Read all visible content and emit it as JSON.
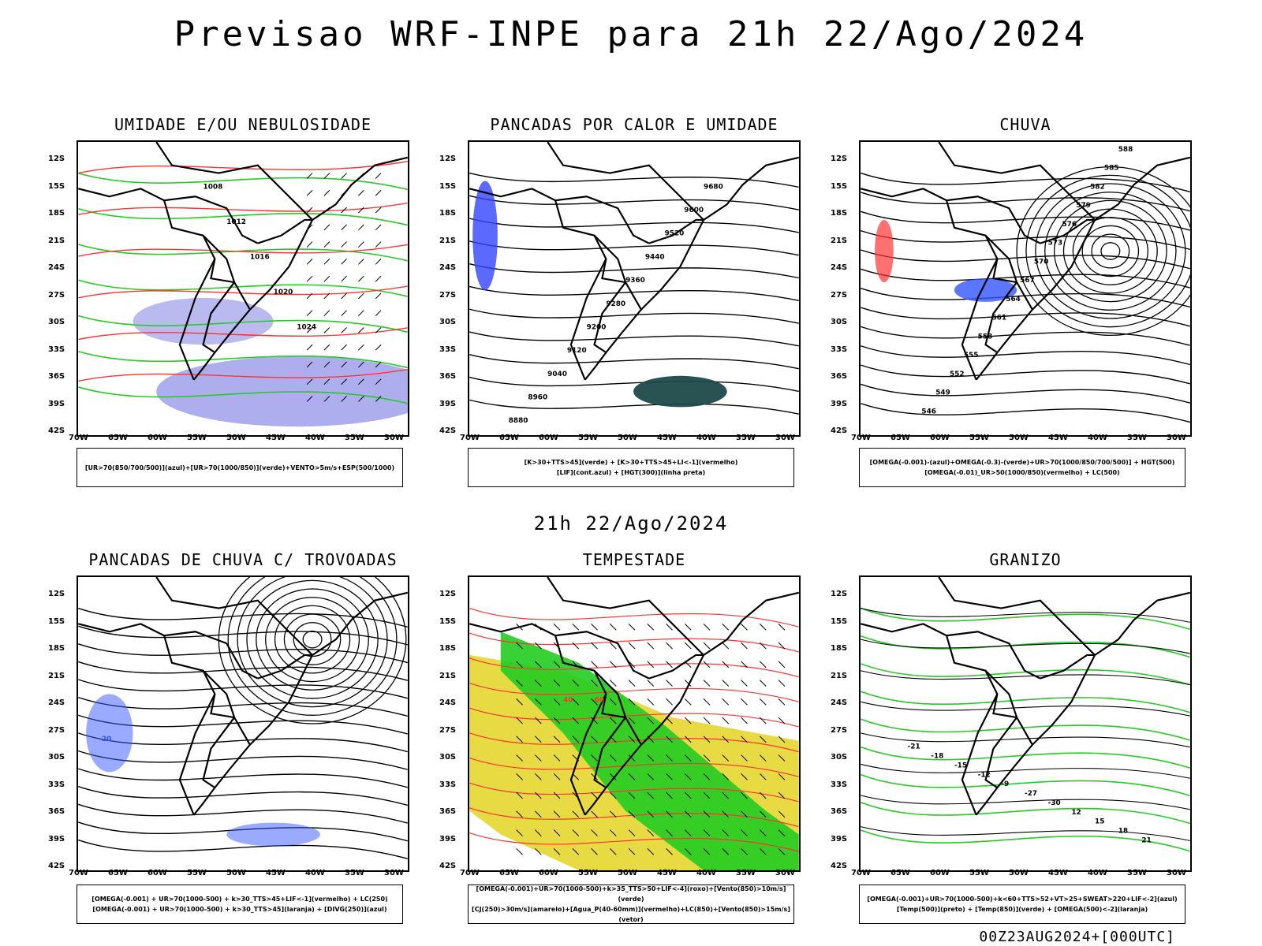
{
  "title": "Previsao WRF-INPE  para 21h 22/Ago/2024",
  "mid_title": "21h 22/Ago/2024",
  "footer": "00Z23AUG2024+[000UTC]",
  "lat_labels": [
    "12S",
    "15S",
    "18S",
    "21S",
    "24S",
    "27S",
    "30S",
    "33S",
    "36S",
    "39S",
    "42S"
  ],
  "lon_labels": [
    "70W",
    "65W",
    "60W",
    "55W",
    "50W",
    "45W",
    "40W",
    "35W",
    "30W"
  ],
  "panels": [
    {
      "title": "UMIDADE E/OU NEBULOSIDADE",
      "legend": [
        "[UR>70(850/700/500)](azul)+[UR>70(1000/850)](verde)+VENTO>5m/s+ESP(500/1000)"
      ],
      "contour_labels": [
        "1008",
        "1012",
        "1016",
        "1020",
        "1024"
      ],
      "colors": {
        "humid_high": "#8c8ce8",
        "humid_low": "#22cc22",
        "thickness": "#ff3333"
      }
    },
    {
      "title": "PANCADAS POR CALOR E UMIDADE",
      "legend": [
        "[K>30+TTS>45](verde) + [K>30+TTS>45+LI<-1](vermelho)",
        "[LIF](cont.azul) + [HGT(300)](linha preta)"
      ],
      "contour_labels": [
        "9680",
        "9600",
        "9520",
        "9440",
        "9360",
        "9280",
        "9200",
        "9120",
        "9040",
        "8960",
        "8880"
      ],
      "colors": {
        "convective": "#1e4a4a",
        "lif": "#3344ff"
      }
    },
    {
      "title": "CHUVA",
      "legend": [
        "[OMEGA(-0.001)-(azul)+OMEGA(-0.3)-(verde)+UR>70(1000/850/700/500)] + HGT(500)",
        "[OMEGA(-0.01)_UR>50(1000/850)(vermelho) + LC(500)"
      ],
      "contour_labels": [
        "588",
        "585",
        "582",
        "579",
        "576",
        "573",
        "570",
        "567",
        "564",
        "561",
        "558",
        "555",
        "552",
        "549",
        "546"
      ],
      "colors": {
        "omega": "#3355ff",
        "omega_ur": "#ff3333"
      }
    },
    {
      "title": "PANCADAS DE CHUVA C/ TROVOADAS",
      "legend": [
        "[OMEGA(-0.001) + UR>70(1000-500) + k>30_TTS>45+LIF<-1](vermelho) + LC(250)",
        "[OMEGA(-0.001) + UR>70(1000-500) + k>30_TTS>45](laranja) + [DIVG(250)](azul)"
      ],
      "contour_labels": [
        "20"
      ],
      "colors": {
        "divg": "#3355ff"
      }
    },
    {
      "title": "TEMPESTADE",
      "legend": [
        "[OMEGA(-0.001)+UR>70(1000-500)+k>35_TTS>50+LIF<-4](roxo)+[Vento(850)>10m/s](verde)",
        "[CJ(250)>30m/s](amarelo)+[Agua_P(40-60mm)](vermelho)+LC(850)+[Vento(850)>15m/s](vetor)"
      ],
      "contour_labels": [
        "40",
        "60"
      ],
      "colors": {
        "jet": "#e6d62e",
        "wind": "#22cc22",
        "water": "#ff3333"
      }
    },
    {
      "title": "GRANIZO",
      "legend": [
        "[OMEGA(-0.001)+UR>70(1000-500)+k<60+TTS>52+VT>25+SWEAT>220+LIF<-2](azul)",
        "[Temp(500)](preto) + [Temp(850)](verde) + [OMEGA(500)<-2](laranja)"
      ],
      "contour_labels": [
        "-21",
        "-18",
        "-15",
        "-12",
        "-9",
        "-27",
        "-30",
        "12",
        "15",
        "18",
        "21"
      ],
      "colors": {
        "temp850": "#22cc22"
      }
    }
  ]
}
